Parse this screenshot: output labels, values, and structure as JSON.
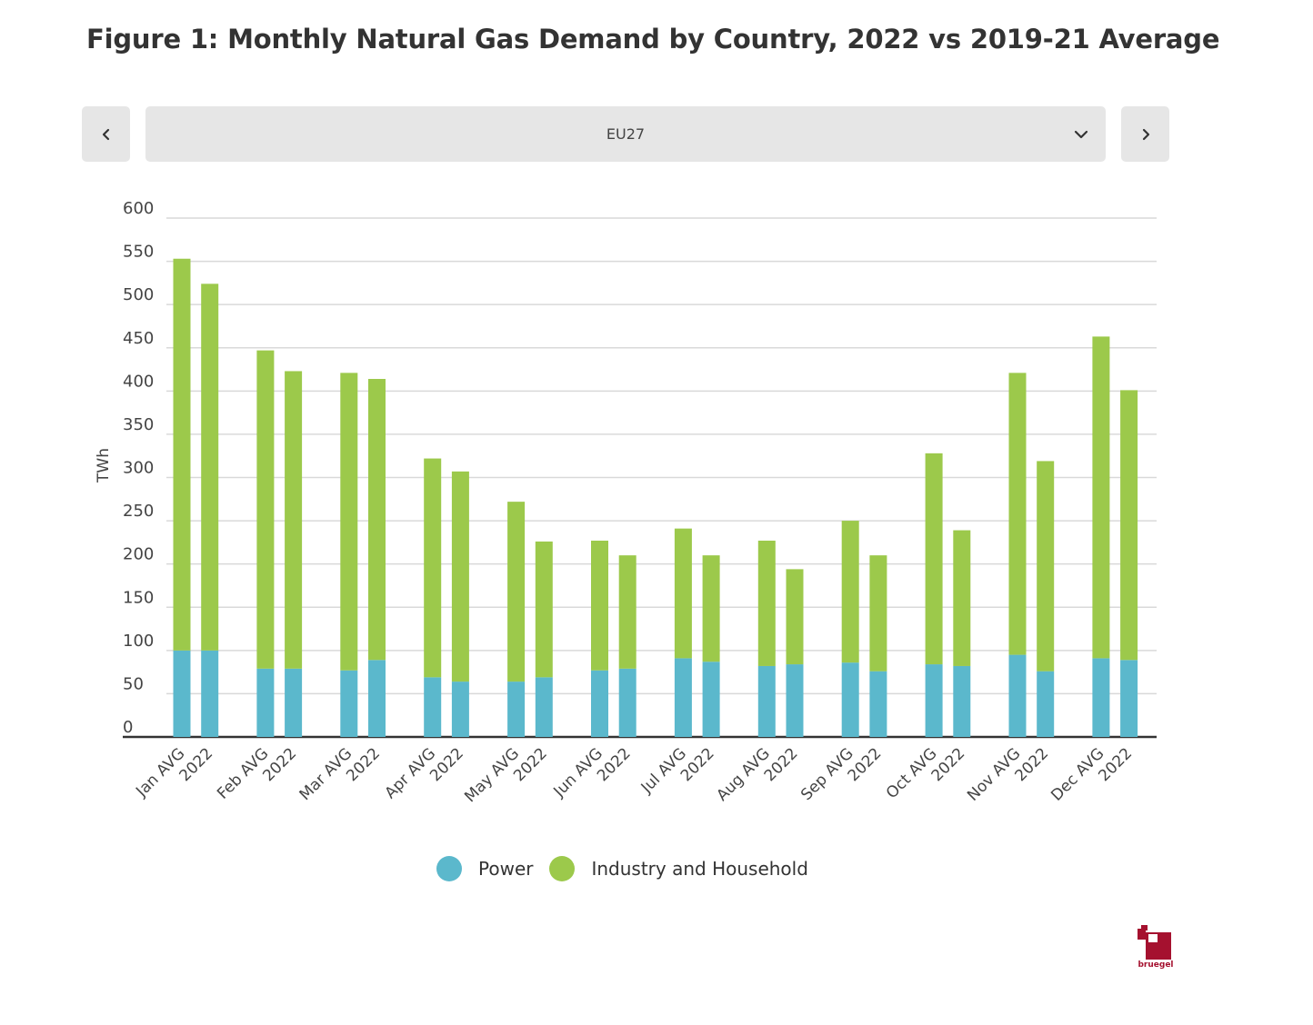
{
  "header": {
    "title": "Figure 1: Monthly Natural Gas Demand by Country, 2022 vs 2019-21 Average"
  },
  "controls": {
    "prev_icon": "chevron-left-icon",
    "next_icon": "chevron-right-icon",
    "dropdown_icon": "chevron-down-icon",
    "selected_country": "EU27"
  },
  "chart_data": {
    "type": "bar",
    "stacked": true,
    "ylabel": "TWh",
    "ylim": [
      0,
      600
    ],
    "yticks": [
      0,
      50,
      100,
      150,
      200,
      250,
      300,
      350,
      400,
      450,
      500,
      550,
      600
    ],
    "grid": true,
    "categories": [
      "Jan AVG",
      "2022",
      "Feb AVG",
      "2022",
      "Mar AVG",
      "2022",
      "Apr AVG",
      "2022",
      "May AVG",
      "2022",
      "Jun AVG",
      "2022",
      "Jul AVG",
      "2022",
      "Aug AVG",
      "2022",
      "Sep AVG",
      "2022",
      "Oct AVG",
      "2022",
      "Nov AVG",
      "2022",
      "Dec AVG",
      "2022"
    ],
    "series": [
      {
        "name": "Power",
        "color": "#5bb8cc",
        "values": [
          100,
          100,
          79,
          79,
          77,
          89,
          69,
          64,
          64,
          69,
          77,
          79,
          91,
          87,
          82,
          84,
          86,
          76,
          84,
          82,
          95,
          76,
          91,
          89
        ]
      },
      {
        "name": "Industry and Household",
        "color": "#9cc94b",
        "values": [
          453,
          424,
          368,
          344,
          344,
          325,
          253,
          243,
          208,
          157,
          150,
          131,
          150,
          123,
          145,
          110,
          164,
          134,
          244,
          157,
          326,
          243,
          372,
          312
        ]
      }
    ],
    "legend_position": "bottom-center"
  },
  "branding": {
    "logo_text": "bruegel",
    "logo_color": "#a5112f"
  }
}
